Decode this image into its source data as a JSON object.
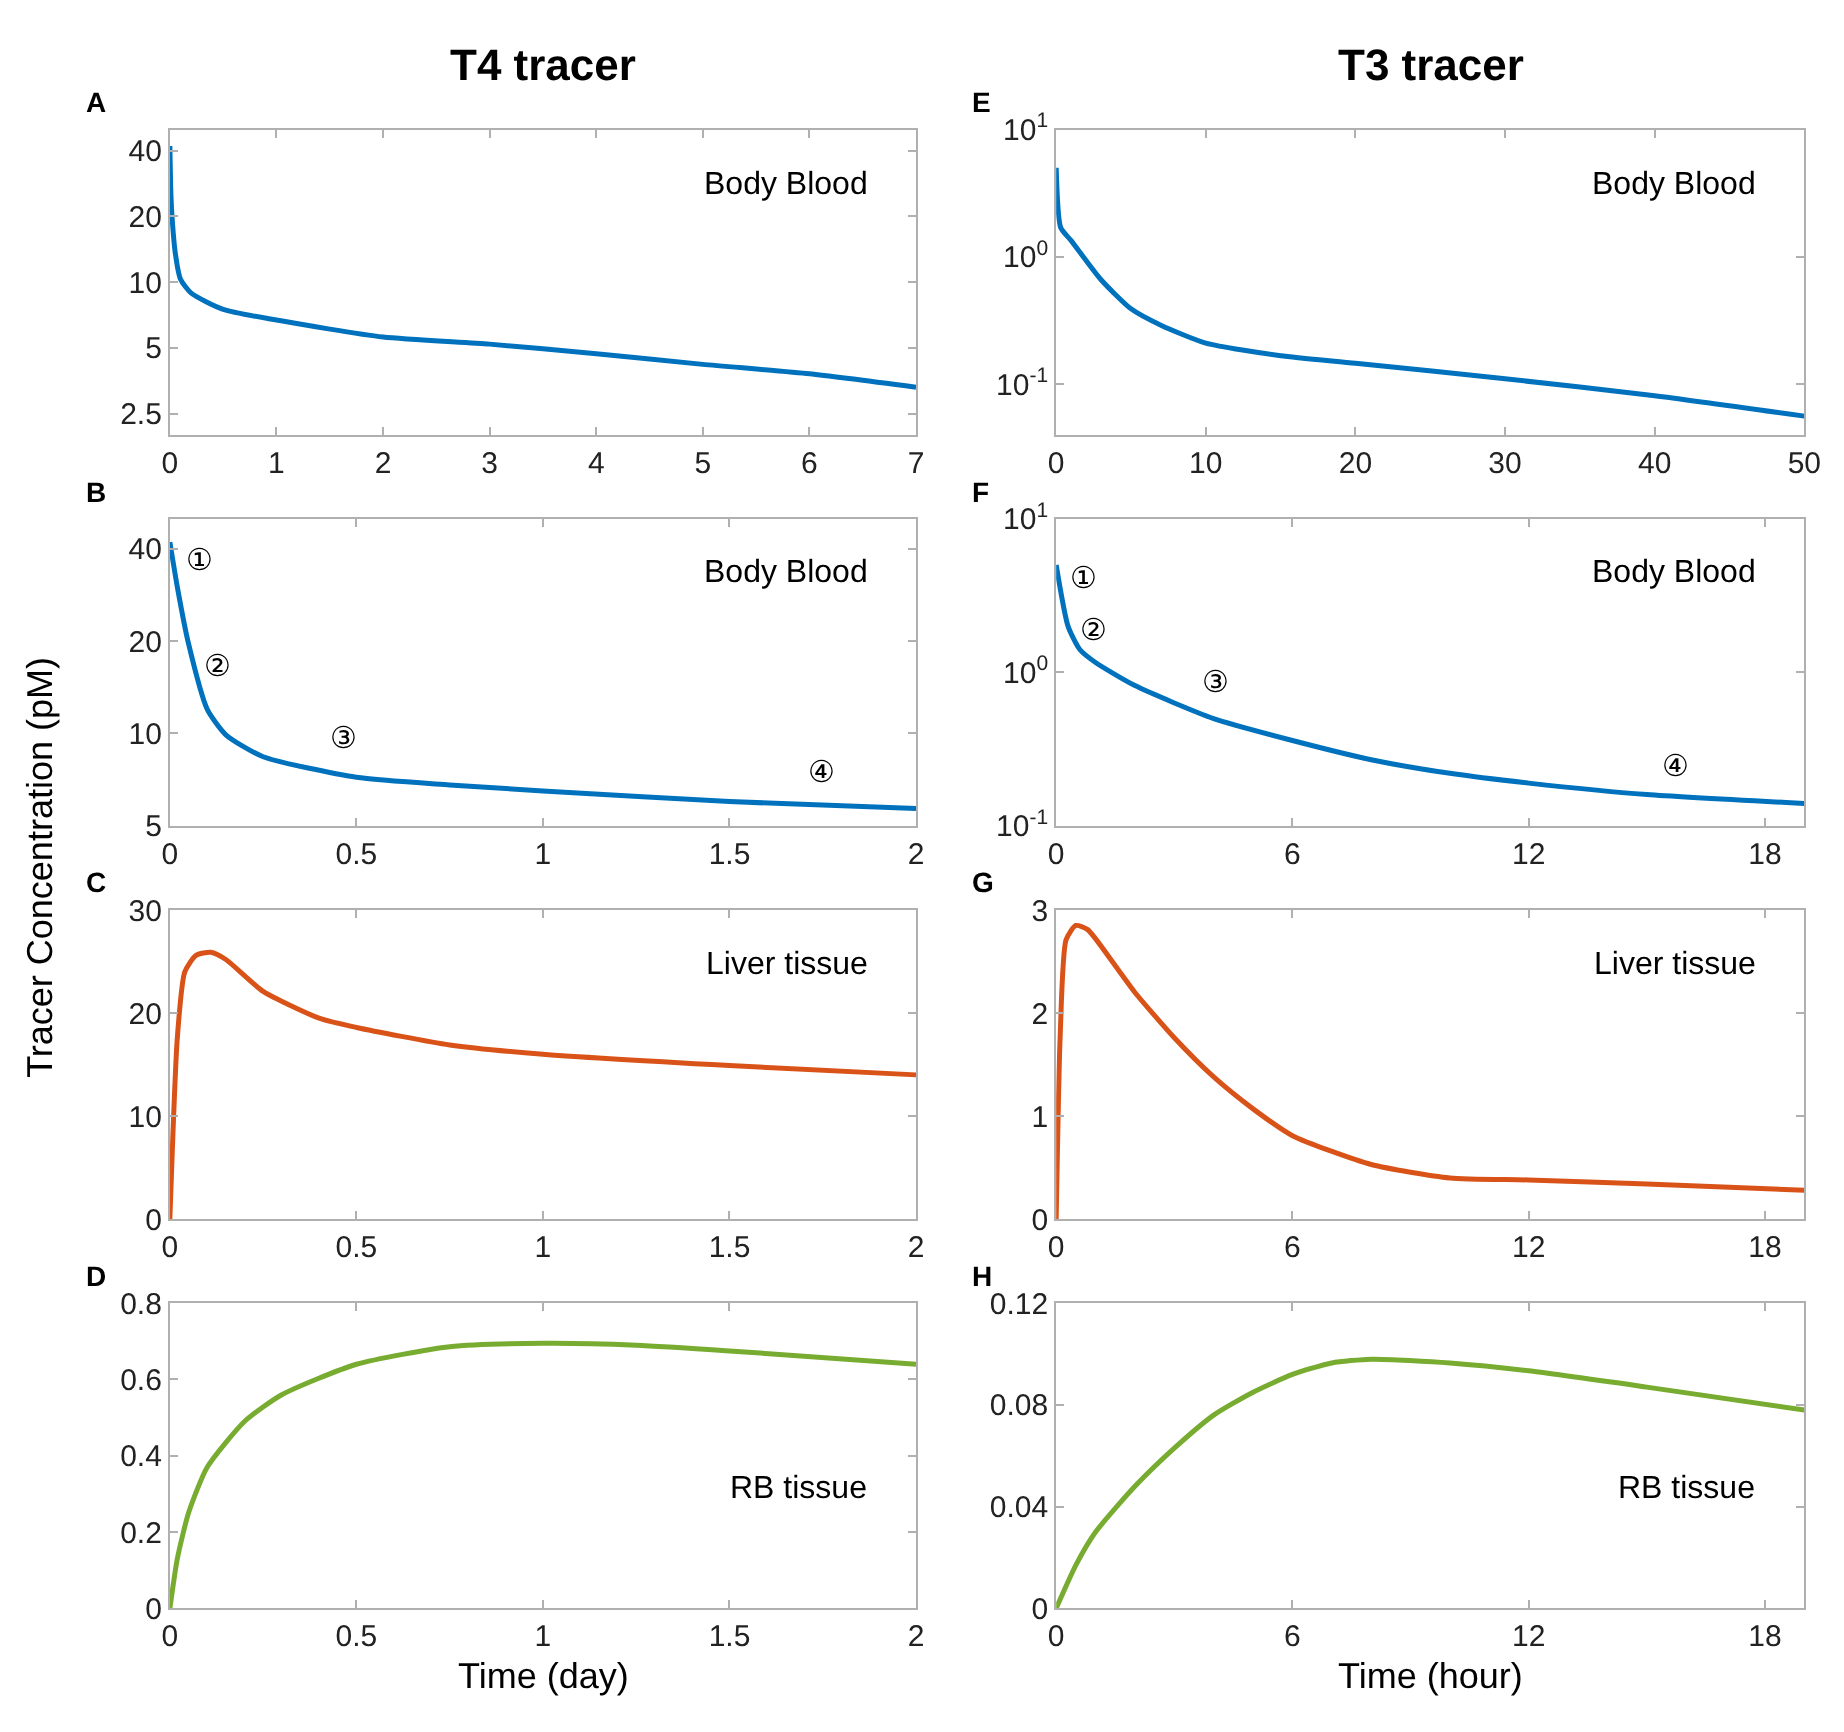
{
  "chart_data": [
    {
      "type": "line",
      "title": "T4 tracer",
      "annotations": [
        "A",
        "Body Blood"
      ],
      "log": "y",
      "xlim": [
        0,
        7
      ],
      "xticks": [
        0,
        1,
        2,
        3,
        4,
        5,
        6,
        7
      ],
      "ylim": [
        2,
        50
      ],
      "yticks": [
        2.5,
        5,
        10,
        20,
        40
      ],
      "series": [
        {
          "color": "#0072bd",
          "x": [
            0,
            0.01,
            0.02,
            0.05,
            0.1,
            0.2,
            0.5,
            1,
            2,
            3,
            4,
            5,
            6,
            7
          ],
          "values": [
            42,
            25,
            20,
            13.7,
            10.3,
            8.9,
            7.5,
            6.7,
            5.6,
            5.2,
            4.7,
            4.2,
            3.8,
            3.3
          ]
        }
      ]
    },
    {
      "type": "line",
      "ylabel": "Tracer Concentration (pM)",
      "annotations": [
        "B",
        "Body Blood",
        "①",
        "②",
        "③",
        "④"
      ],
      "log": "y",
      "xlim": [
        0,
        2
      ],
      "xticks": [
        0,
        0.5,
        1,
        1.5,
        2
      ],
      "ylim": [
        5,
        50
      ],
      "yticks": [
        5,
        10,
        20,
        40
      ],
      "series": [
        {
          "color": "#0072bd",
          "x": [
            0,
            0.02,
            0.05,
            0.1,
            0.15,
            0.25,
            0.5,
            0.75,
            1,
            1.5,
            2
          ],
          "values": [
            42,
            30,
            19.6,
            12,
            9.9,
            8.4,
            7.2,
            6.8,
            6.5,
            6.0,
            5.7
          ]
        }
      ]
    },
    {
      "type": "line",
      "annotations": [
        "C",
        "Liver tissue"
      ],
      "xlim": [
        0,
        2
      ],
      "xticks": [
        0,
        0.5,
        1,
        1.5,
        2
      ],
      "ylim": [
        0,
        30
      ],
      "yticks": [
        0,
        10,
        20,
        30
      ],
      "series": [
        {
          "color": "#d95319",
          "x": [
            0,
            0.02,
            0.04,
            0.07,
            0.11,
            0.15,
            0.25,
            0.4,
            0.5,
            0.75,
            1,
            1.5,
            2
          ],
          "values": [
            0,
            17.6,
            24,
            25.6,
            25.9,
            25.2,
            22.1,
            19.5,
            18.6,
            16.9,
            16.0,
            14.9,
            14.0
          ]
        }
      ]
    },
    {
      "type": "line",
      "xlabel": "Time (day)",
      "annotations": [
        "D",
        "RB tissue"
      ],
      "xlim": [
        0,
        2
      ],
      "xticks": [
        0,
        0.5,
        1,
        1.5,
        2
      ],
      "ylim": [
        0,
        0.8
      ],
      "yticks": [
        0,
        0.2,
        0.4,
        0.6,
        0.8
      ],
      "series": [
        {
          "color": "#77ac30",
          "x": [
            0,
            0.02,
            0.05,
            0.1,
            0.2,
            0.3,
            0.5,
            0.75,
            1,
            1.25,
            1.5,
            2
          ],
          "values": [
            0,
            0.13,
            0.25,
            0.37,
            0.49,
            0.56,
            0.64,
            0.686,
            0.695,
            0.69,
            0.675,
            0.64
          ]
        }
      ]
    },
    {
      "type": "line",
      "title": "T3 tracer",
      "annotations": [
        "E",
        "Body Blood"
      ],
      "log": "y",
      "xlim": [
        0,
        50
      ],
      "xticks": [
        0,
        10,
        20,
        30,
        40,
        50
      ],
      "ylim": [
        0.04,
        10
      ],
      "yticks": [
        {
          "value": 0.1,
          "label": "10$^{-1}$"
        },
        {
          "value": 1,
          "label": "10$^{0}$"
        },
        {
          "value": 10,
          "label": "10$^{1}$"
        }
      ],
      "series": [
        {
          "color": "#0072bd",
          "x": [
            0,
            0.3,
            1,
            3,
            5,
            7,
            10,
            15,
            20,
            30,
            40,
            50
          ],
          "values": [
            5,
            1.7,
            1.34,
            0.66,
            0.39,
            0.29,
            0.21,
            0.167,
            0.146,
            0.11,
            0.081,
            0.056
          ]
        }
      ]
    },
    {
      "type": "line",
      "annotations": [
        "F",
        "Body Blood",
        "①",
        "②",
        "③",
        "④"
      ],
      "log": "y",
      "xlim": [
        0,
        19
      ],
      "xticks": [
        0,
        6,
        12,
        18
      ],
      "ylim": [
        0.1,
        10
      ],
      "yticks": [
        {
          "value": 0.1,
          "label": "10$^{-1}$"
        },
        {
          "value": 1,
          "label": "10$^{0}$"
        },
        {
          "value": 10,
          "label": "10$^{1}$"
        }
      ],
      "series": [
        {
          "color": "#0072bd",
          "x": [
            0,
            0.3,
            0.6,
            1,
            2,
            4,
            6,
            8,
            10,
            12,
            15,
            19
          ],
          "values": [
            5,
            2.0,
            1.41,
            1.16,
            0.82,
            0.5,
            0.36,
            0.27,
            0.22,
            0.19,
            0.16,
            0.14
          ]
        }
      ]
    },
    {
      "type": "line",
      "annotations": [
        "G",
        "Liver tissue"
      ],
      "xlim": [
        0,
        19
      ],
      "xticks": [
        0,
        6,
        12,
        18
      ],
      "ylim": [
        0,
        3
      ],
      "yticks": [
        0,
        1,
        2,
        3
      ],
      "series": [
        {
          "color": "#d95319",
          "x": [
            0,
            0.1,
            0.25,
            0.5,
            0.8,
            1.5,
            2,
            3,
            4,
            5,
            6,
            8,
            10,
            12,
            15,
            19
          ],
          "values": [
            0,
            1.76,
            2.71,
            2.85,
            2.81,
            2.46,
            2.2,
            1.76,
            1.38,
            1.07,
            0.81,
            0.53,
            0.4,
            0.38,
            0.34,
            0.28
          ]
        }
      ]
    },
    {
      "type": "line",
      "xlabel": "Time (hour)",
      "annotations": [
        "H",
        "RB tissue"
      ],
      "xlim": [
        0,
        19
      ],
      "xticks": [
        0,
        6,
        12,
        18
      ],
      "ylim": [
        0,
        0.12
      ],
      "yticks": [
        0,
        0.04,
        0.08,
        0.12
      ],
      "series": [
        {
          "color": "#77ac30",
          "x": [
            0,
            0.5,
            1,
            2,
            3,
            4,
            5,
            6,
            7,
            8,
            10,
            12,
            15,
            19
          ],
          "values": [
            0,
            0.017,
            0.03,
            0.048,
            0.063,
            0.076,
            0.085,
            0.092,
            0.0965,
            0.098,
            0.0965,
            0.0934,
            0.087,
            0.078
          ]
        }
      ]
    }
  ]
}
